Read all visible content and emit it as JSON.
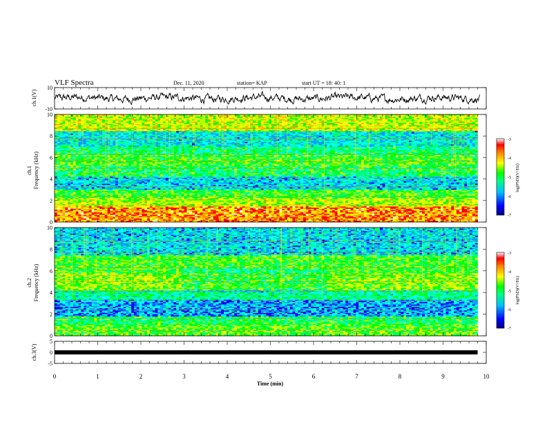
{
  "header": {
    "title": "VLF Spectra",
    "date": "Dec. 11, 2020",
    "station": "station= KAP",
    "start": "start  UT =   18: 40: 1"
  },
  "colors": {
    "colormap": [
      "#000080",
      "#0000ff",
      "#00a0ff",
      "#00ffff",
      "#00ff80",
      "#00ff00",
      "#c0ff00",
      "#ffff00",
      "#ffa000",
      "#ff0000",
      "#ffffff"
    ],
    "trace": "#000000",
    "ch3_bar": "#000000"
  },
  "chart_data": [
    {
      "type": "line",
      "panel": "ch1-waveform",
      "ylabel": "ch.1(V)",
      "ylim": [
        -10,
        10
      ],
      "yticks": [
        "10",
        "-10"
      ],
      "xlim": [
        0,
        10
      ],
      "description_values": "noisy waveform, mostly between -4 and 4 V"
    },
    {
      "type": "heatmap",
      "panel": "ch1-spectrogram",
      "ylabel": "ch.1\nFrequency (kHz)",
      "ylabel_line1": "ch.1",
      "ylabel_line2": "Frequency (kHz)",
      "ylim": [
        0,
        10
      ],
      "yticks": [
        "0",
        "2",
        "4",
        "6",
        "8",
        "10"
      ],
      "xlim": [
        0,
        10
      ],
      "colorbar": {
        "label": "log(PSD)(V²/Hz)",
        "range": [
          -7,
          -3
        ],
        "ticks": [
          "-3",
          "-4",
          "-5",
          "-6",
          "-7"
        ]
      }
    },
    {
      "type": "heatmap",
      "panel": "ch2-spectrogram",
      "ylabel_line1": "ch.2",
      "ylabel_line2": "Frequency (kHz)",
      "ylim": [
        0,
        10
      ],
      "yticks": [
        "0",
        "2",
        "4",
        "6",
        "8",
        "10"
      ],
      "xlim": [
        0,
        10
      ],
      "colorbar": {
        "label": "log(PSD)(V²/Hz)",
        "range": [
          -7,
          -3
        ],
        "ticks": [
          "-3",
          "-4",
          "-5",
          "-6",
          "-7"
        ]
      }
    },
    {
      "type": "line",
      "panel": "ch3-waveform",
      "ylabel": "ch.3(V)",
      "ylim": [
        -5,
        5
      ],
      "yticks": [
        "5",
        "0",
        "-5"
      ],
      "xlim": [
        0,
        10
      ],
      "level": 0
    }
  ],
  "xaxis": {
    "label": "Time  (min)",
    "ticks": [
      "0",
      "1",
      "2",
      "3",
      "4",
      "5",
      "6",
      "7",
      "8",
      "9",
      "10"
    ]
  }
}
